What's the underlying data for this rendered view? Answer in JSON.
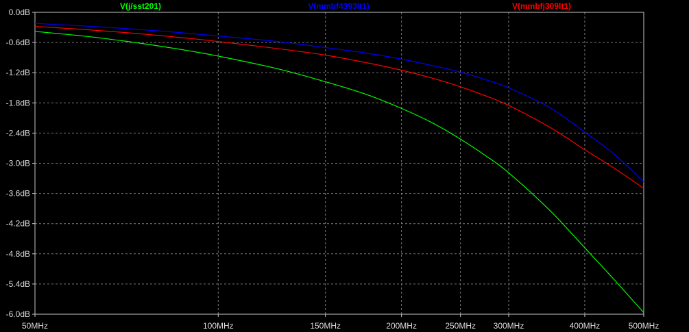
{
  "chart_data": {
    "type": "line",
    "x_scale": "log",
    "xlim_hz": [
      50000000,
      500000000
    ],
    "ylim_db": [
      -6.0,
      0.0
    ],
    "grid": true,
    "legend_position": "top",
    "y_ticks": [
      {
        "value": 0.0,
        "label": "0.0dB"
      },
      {
        "value": -0.6,
        "label": "-0.6dB"
      },
      {
        "value": -1.2,
        "label": "-1.2dB"
      },
      {
        "value": -1.8,
        "label": "-1.8dB"
      },
      {
        "value": -2.4,
        "label": "-2.4dB"
      },
      {
        "value": -3.0,
        "label": "-3.0dB"
      },
      {
        "value": -3.6,
        "label": "-3.6dB"
      },
      {
        "value": -4.2,
        "label": "-4.2dB"
      },
      {
        "value": -4.8,
        "label": "-4.8dB"
      },
      {
        "value": -5.4,
        "label": "-5.4dB"
      },
      {
        "value": -6.0,
        "label": "-6.0dB"
      }
    ],
    "x_ticks": [
      {
        "value": 50000000,
        "label": "50MHz"
      },
      {
        "value": 100000000,
        "label": "100MHz"
      },
      {
        "value": 150000000,
        "label": "150MHz"
      },
      {
        "value": 200000000,
        "label": "200MHz"
      },
      {
        "value": 250000000,
        "label": "250MHz"
      },
      {
        "value": 300000000,
        "label": "300MHz"
      },
      {
        "value": 400000000,
        "label": "400MHz"
      },
      {
        "value": 500000000,
        "label": "500MHz"
      }
    ],
    "series": [
      {
        "name": "V(j/sst201)",
        "color": "#00ff00",
        "points": [
          [
            50000000,
            -0.38
          ],
          [
            60000000,
            -0.47
          ],
          [
            70000000,
            -0.57
          ],
          [
            80000000,
            -0.67
          ],
          [
            90000000,
            -0.77
          ],
          [
            100000000,
            -0.87
          ],
          [
            125000000,
            -1.12
          ],
          [
            150000000,
            -1.38
          ],
          [
            175000000,
            -1.63
          ],
          [
            200000000,
            -1.91
          ],
          [
            225000000,
            -2.2
          ],
          [
            250000000,
            -2.52
          ],
          [
            275000000,
            -2.85
          ],
          [
            300000000,
            -3.19
          ],
          [
            350000000,
            -3.93
          ],
          [
            400000000,
            -4.68
          ],
          [
            450000000,
            -5.35
          ],
          [
            500000000,
            -5.97
          ]
        ]
      },
      {
        "name": "V(mmbf4393lt1)",
        "color": "#0000ff",
        "points": [
          [
            50000000,
            -0.22
          ],
          [
            60000000,
            -0.27
          ],
          [
            70000000,
            -0.32
          ],
          [
            80000000,
            -0.37
          ],
          [
            90000000,
            -0.42
          ],
          [
            100000000,
            -0.47
          ],
          [
            125000000,
            -0.58
          ],
          [
            150000000,
            -0.7
          ],
          [
            175000000,
            -0.81
          ],
          [
            200000000,
            -0.93
          ],
          [
            225000000,
            -1.06
          ],
          [
            250000000,
            -1.19
          ],
          [
            275000000,
            -1.34
          ],
          [
            300000000,
            -1.5
          ],
          [
            350000000,
            -1.89
          ],
          [
            400000000,
            -2.38
          ],
          [
            450000000,
            -2.85
          ],
          [
            500000000,
            -3.37
          ]
        ]
      },
      {
        "name": "V(mmbfj309lt1)",
        "color": "#ff0000",
        "points": [
          [
            50000000,
            -0.28
          ],
          [
            60000000,
            -0.34
          ],
          [
            70000000,
            -0.4
          ],
          [
            80000000,
            -0.46
          ],
          [
            90000000,
            -0.52
          ],
          [
            100000000,
            -0.58
          ],
          [
            125000000,
            -0.72
          ],
          [
            150000000,
            -0.85
          ],
          [
            175000000,
            -1.0
          ],
          [
            200000000,
            -1.15
          ],
          [
            225000000,
            -1.31
          ],
          [
            250000000,
            -1.48
          ],
          [
            275000000,
            -1.66
          ],
          [
            300000000,
            -1.85
          ],
          [
            350000000,
            -2.28
          ],
          [
            400000000,
            -2.73
          ],
          [
            450000000,
            -3.12
          ],
          [
            500000000,
            -3.5
          ]
        ]
      }
    ]
  }
}
